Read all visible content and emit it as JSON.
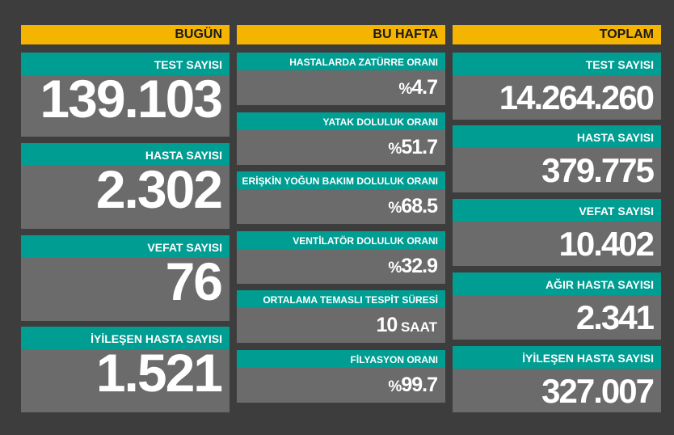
{
  "columns": {
    "today": {
      "header": "BUGÜN",
      "cards": [
        {
          "label": "TEST SAYISI",
          "value": "139.103"
        },
        {
          "label": "HASTA SAYISI",
          "value": "2.302"
        },
        {
          "label": "VEFAT SAYISI",
          "value": "76"
        },
        {
          "label": "İYİLEŞEN HASTA SAYISI",
          "value": "1.521"
        }
      ]
    },
    "week": {
      "header": "BU HAFTA",
      "cards": [
        {
          "label": "HASTALARDA ZATÜRRE ORANI",
          "prefix": "%",
          "value": "4.7",
          "unit": ""
        },
        {
          "label": "YATAK DOLULUK ORANI",
          "prefix": "%",
          "value": "51.7",
          "unit": ""
        },
        {
          "label": "ERİŞKİN YOĞUN BAKIM DOLULUK ORANI",
          "prefix": "%",
          "value": "68.5",
          "unit": ""
        },
        {
          "label": "VENTİLATÖR DOLULUK ORANI",
          "prefix": "%",
          "value": "32.9",
          "unit": ""
        },
        {
          "label": "ORTALAMA TEMASLI TESPİT SÜRESİ",
          "prefix": "",
          "value": "10",
          "unit": " SAAT"
        },
        {
          "label": "FİLYASYON ORANI",
          "prefix": "%",
          "value": "99.7",
          "unit": ""
        }
      ]
    },
    "total": {
      "header": "TOPLAM",
      "cards": [
        {
          "label": "TEST SAYISI",
          "value": "14.264.260"
        },
        {
          "label": "HASTA SAYISI",
          "value": "379.775"
        },
        {
          "label": "VEFAT SAYISI",
          "value": "10.402"
        },
        {
          "label": "AĞIR HASTA SAYISI",
          "value": "2.341"
        },
        {
          "label": "İYİLEŞEN HASTA SAYISI",
          "value": "327.007"
        }
      ]
    }
  },
  "colors": {
    "header_bg": "#f5b400",
    "label_bg": "#009d93",
    "card_bg": "#6b6b6b",
    "page_bg": "#3d3d3d"
  }
}
